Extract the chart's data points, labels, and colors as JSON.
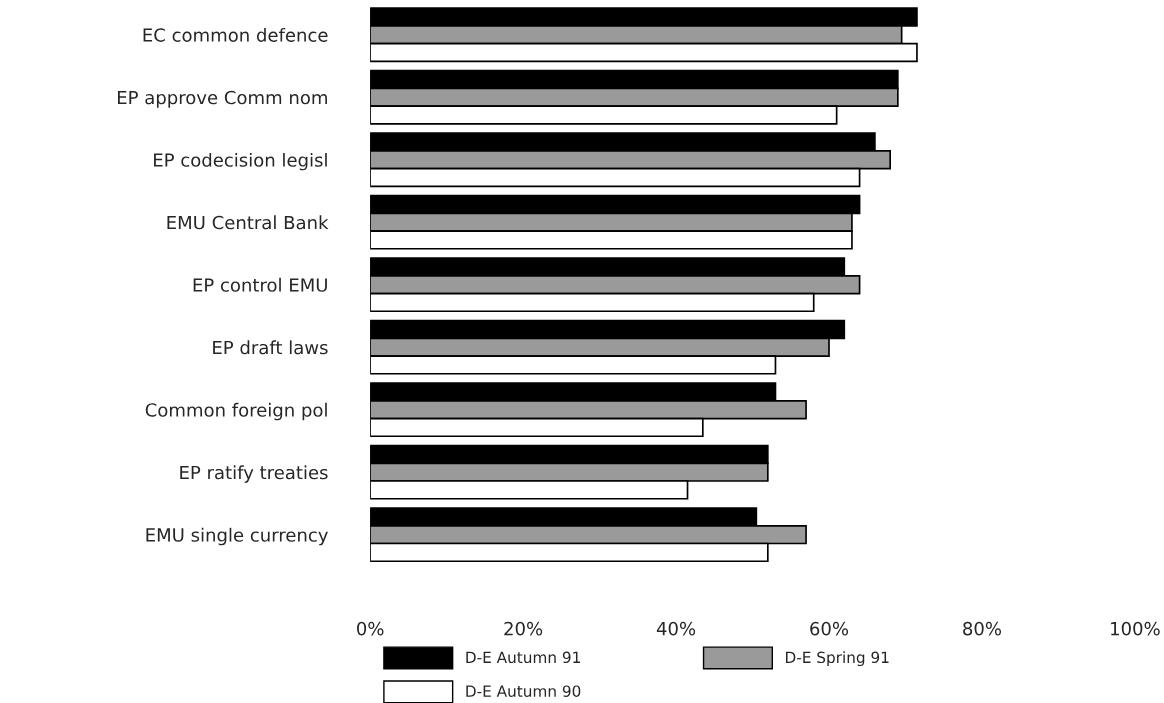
{
  "chart_data": {
    "type": "bar",
    "orientation": "horizontal",
    "categories": [
      "EC common defence",
      "EP approve Comm nom",
      "EP codecision legisl",
      "EMU Central Bank",
      "EP control EMU",
      "EP draft laws",
      "Common foreign pol",
      "EP ratify treaties",
      "EMU single currency"
    ],
    "series": [
      {
        "name": "D-E Autumn 91",
        "color": "#000000",
        "values": [
          71.5,
          69,
          66,
          64,
          62,
          62,
          53,
          52,
          50.5
        ]
      },
      {
        "name": "D-E Spring 91",
        "color": "#9a9a9a",
        "values": [
          69.5,
          69,
          68,
          63,
          64,
          60,
          57,
          52,
          57
        ]
      },
      {
        "name": "D-E Autumn 90",
        "color": "#ffffff",
        "values": [
          71.5,
          61,
          64,
          63,
          58,
          53,
          43.5,
          41.5,
          52
        ]
      }
    ],
    "xlim": [
      0,
      100
    ],
    "xticks": [
      {
        "value": 0,
        "label": "0%"
      },
      {
        "value": 20,
        "label": "20%"
      },
      {
        "value": 40,
        "label": "40%"
      },
      {
        "value": 60,
        "label": "60%"
      },
      {
        "value": 80,
        "label": "80%"
      },
      {
        "value": 100,
        "label": "100%"
      }
    ],
    "grid": false,
    "legend": "bottom"
  }
}
